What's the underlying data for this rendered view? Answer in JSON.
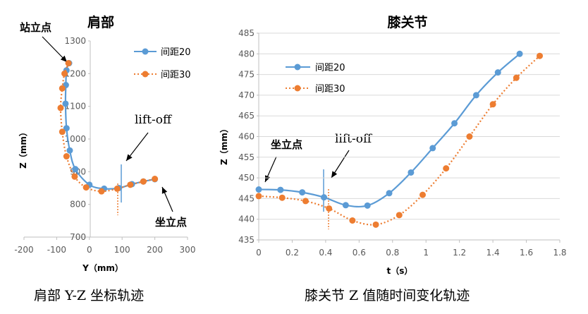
{
  "colors": {
    "series1": "#5b9bd5",
    "series2": "#ed7d31",
    "axis": "#bfbfbf",
    "red_tick": "#c00000"
  },
  "chart_data": [
    {
      "type": "line",
      "title": "肩部",
      "xlabel": "Y（mm）",
      "ylabel": "Z（mm）",
      "xlim": [
        -200,
        300
      ],
      "ylim": [
        700,
        1300
      ],
      "x_ticks": [
        "-200",
        "-100",
        "0",
        "100",
        "200",
        "300"
      ],
      "y_ticks": [
        "700",
        "800",
        "900",
        "1000",
        "1100",
        "1200",
        "1300"
      ],
      "legend_position": "top-right",
      "series": [
        {
          "name": "间距20",
          "style": "solid-marker",
          "points": [
            [
              -62,
              1232
            ],
            [
              -70,
              1210
            ],
            [
              -72,
              1165
            ],
            [
              -73,
              1108
            ],
            [
              -70,
              1033
            ],
            [
              -60,
              965
            ],
            [
              -43,
              908
            ],
            [
              0,
              860
            ],
            [
              45,
              848
            ],
            [
              90,
              850
            ],
            [
              130,
              862
            ],
            [
              165,
              870
            ],
            [
              200,
              877
            ]
          ]
        },
        {
          "name": "间距30",
          "style": "dotted-marker",
          "points": [
            [
              -64,
              1232
            ],
            [
              -76,
              1200
            ],
            [
              -83,
              1155
            ],
            [
              -88,
              1095
            ],
            [
              -83,
              1022
            ],
            [
              -70,
              947
            ],
            [
              -45,
              885
            ],
            [
              -10,
              852
            ],
            [
              37,
              840
            ],
            [
              85,
              848
            ],
            [
              125,
              860
            ],
            [
              165,
              870
            ],
            [
              200,
              878
            ]
          ]
        }
      ],
      "annotations": {
        "stand": "站立点",
        "liftoff": "lift-off",
        "sit": "坐立点"
      }
    },
    {
      "type": "line",
      "title": "膝关节",
      "xlabel": "t（s）",
      "ylabel": "Z（mm）",
      "xlim": [
        0,
        1.8
      ],
      "ylim": [
        435,
        485
      ],
      "x_ticks": [
        "0",
        "0.2",
        "0.4",
        "0.6",
        "0.8",
        "1",
        "1.2",
        "1.4",
        "1.6",
        "1.8"
      ],
      "y_ticks": [
        "435",
        "440",
        "445",
        "450",
        "455",
        "460",
        "465",
        "470",
        "475",
        "480",
        "485"
      ],
      "legend_position": "top-left",
      "series": [
        {
          "name": "间距20",
          "style": "solid-marker",
          "points": [
            [
              0,
              447.2
            ],
            [
              0.13,
              447.1
            ],
            [
              0.26,
              446.5
            ],
            [
              0.39,
              445.3
            ],
            [
              0.52,
              443.4
            ],
            [
              0.65,
              443.3
            ],
            [
              0.78,
              446.3
            ],
            [
              0.91,
              451.3
            ],
            [
              1.04,
              457.2
            ],
            [
              1.17,
              463.2
            ],
            [
              1.3,
              470.0
            ],
            [
              1.43,
              475.5
            ],
            [
              1.56,
              480.0
            ]
          ]
        },
        {
          "name": "间距30",
          "style": "dotted-marker",
          "points": [
            [
              0,
              445.6
            ],
            [
              0.14,
              445.2
            ],
            [
              0.28,
              444.4
            ],
            [
              0.42,
              442.6
            ],
            [
              0.56,
              439.7
            ],
            [
              0.7,
              438.7
            ],
            [
              0.84,
              441.0
            ],
            [
              0.98,
              445.9
            ],
            [
              1.12,
              452.3
            ],
            [
              1.26,
              460.0
            ],
            [
              1.4,
              467.8
            ],
            [
              1.54,
              474.2
            ],
            [
              1.68,
              479.5
            ]
          ]
        }
      ],
      "annotations": {
        "sit": "坐立点",
        "liftoff": "lift-off"
      }
    }
  ],
  "captions": {
    "left": "肩部 Y-Z 坐标轨迹",
    "right": "膝关节 Z 值随时间变化轨迹"
  }
}
